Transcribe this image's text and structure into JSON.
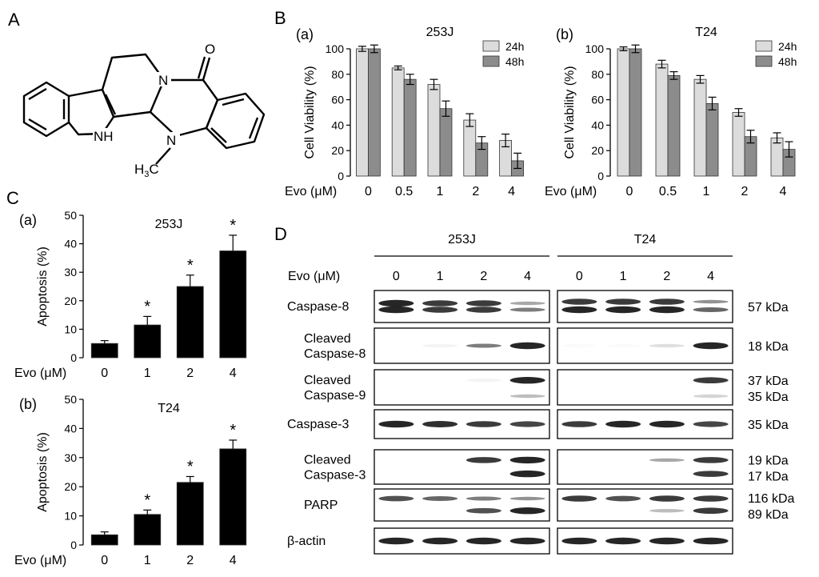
{
  "panel_letters": {
    "a": "A",
    "b": "B",
    "c": "C",
    "d": "D"
  },
  "structure": {
    "carbonyl_label": "O",
    "n_ring_label": "N",
    "nh_label": "NH",
    "n_methyl_label": "N",
    "methyl_label_h": "H",
    "methyl_label_sub": "3",
    "methyl_label_c": "C"
  },
  "colors": {
    "bar_24h": "#dcdcdc",
    "bar_48h": "#8c8c8c",
    "bar_apoptosis": "#000000",
    "blot_bg": "#ffffff",
    "band": "#1a1a1a"
  },
  "chart_data": [
    {
      "panel": "B(a)",
      "type": "bar",
      "sublabel": "(a)",
      "title": "253J",
      "ylabel": "Cell Viability (%)",
      "xlabel": "Evo (μM)",
      "categories": [
        "0",
        "0.5",
        "1",
        "2",
        "4"
      ],
      "ylim": [
        0,
        100
      ],
      "yticks": [
        0,
        20,
        40,
        60,
        80,
        100
      ],
      "series": [
        {
          "name": "24h",
          "values": [
            100,
            85,
            72,
            44,
            28
          ],
          "errors": [
            2,
            1.5,
            4,
            5,
            5
          ]
        },
        {
          "name": "48h",
          "values": [
            100,
            76,
            53,
            26,
            12
          ],
          "errors": [
            3,
            4,
            6,
            5,
            6
          ]
        }
      ],
      "legend": "top-right"
    },
    {
      "panel": "B(b)",
      "type": "bar",
      "sublabel": "(b)",
      "title": "T24",
      "ylabel": "Cell Viability (%)",
      "xlabel": "Evo (μM)",
      "categories": [
        "0",
        "0.5",
        "1",
        "2",
        "4"
      ],
      "ylim": [
        0,
        100
      ],
      "yticks": [
        0,
        20,
        40,
        60,
        80,
        100
      ],
      "series": [
        {
          "name": "24h",
          "values": [
            100,
            88,
            76,
            50,
            30
          ],
          "errors": [
            1.5,
            3,
            3,
            3,
            4
          ]
        },
        {
          "name": "48h",
          "values": [
            100,
            79,
            57,
            31,
            21
          ],
          "errors": [
            3,
            3,
            5,
            5,
            6
          ]
        }
      ],
      "legend": "top-right"
    },
    {
      "panel": "C(a)",
      "type": "bar",
      "sublabel": "(a)",
      "title": "253J",
      "ylabel": "Apoptosis (%)",
      "xlabel": "Evo (μM)",
      "categories": [
        "0",
        "1",
        "2",
        "4"
      ],
      "ylim": [
        0,
        50
      ],
      "yticks": [
        0,
        10,
        20,
        30,
        40,
        50
      ],
      "series": [
        {
          "values": [
            5,
            11.5,
            25,
            37.5
          ],
          "errors": [
            1,
            3,
            4,
            5.5
          ]
        }
      ],
      "significance": [
        "",
        "*",
        "*",
        "*"
      ]
    },
    {
      "panel": "C(b)",
      "type": "bar",
      "sublabel": "(b)",
      "title": "T24",
      "ylabel": "Apoptosis (%)",
      "xlabel": "Evo (μM)",
      "categories": [
        "0",
        "1",
        "2",
        "4"
      ],
      "ylim": [
        0,
        50
      ],
      "yticks": [
        0,
        10,
        20,
        30,
        40,
        50
      ],
      "series": [
        {
          "values": [
            3.5,
            10.5,
            21.5,
            33
          ],
          "errors": [
            1,
            1.5,
            2,
            3
          ]
        }
      ],
      "significance": [
        "",
        "*",
        "*",
        "*"
      ]
    }
  ],
  "western_blot": {
    "cell_lines": [
      "253J",
      "T24"
    ],
    "dose_label": "Evo (μM)",
    "doses": [
      "0",
      "1",
      "2",
      "4"
    ],
    "rows": [
      {
        "label_lines": [
          "Caspase-8"
        ],
        "kda": [
          "57 kDa"
        ],
        "bands": [
          [
            {
              "y": 0.4,
              "i": [
                1,
                0.9,
                0.9,
                0.4
              ]
            },
            {
              "y": 0.6,
              "i": [
                1,
                0.9,
                0.9,
                0.6
              ]
            }
          ],
          [
            {
              "y": 0.35,
              "i": [
                0.9,
                0.9,
                0.9,
                0.5
              ]
            },
            {
              "y": 0.6,
              "i": [
                1,
                1,
                1,
                0.7
              ]
            }
          ]
        ]
      },
      {
        "label_lines": [
          "Cleaved",
          "Caspase-8"
        ],
        "kda": [
          "18 kDa"
        ],
        "bands": [
          [
            {
              "y": 0.5,
              "i": [
                0,
                0.05,
                0.6,
                1
              ]
            }
          ],
          [
            {
              "y": 0.5,
              "i": [
                0.02,
                0.02,
                0.15,
                1
              ]
            }
          ]
        ]
      },
      {
        "label_lines": [
          "Cleaved",
          "Caspase-9"
        ],
        "kda": [
          "37 kDa",
          "35 kDa"
        ],
        "bands": [
          [
            {
              "y": 0.3,
              "i": [
                0,
                0,
                0.05,
                1
              ]
            },
            {
              "y": 0.75,
              "i": [
                0,
                0,
                0,
                0.3
              ]
            }
          ],
          [
            {
              "y": 0.3,
              "i": [
                0,
                0,
                0,
                0.9
              ]
            },
            {
              "y": 0.75,
              "i": [
                0,
                0,
                0,
                0.2
              ]
            }
          ]
        ]
      },
      {
        "label_lines": [
          "Caspase-3"
        ],
        "kda": [
          "35 kDa"
        ],
        "bands": [
          [
            {
              "y": 0.5,
              "i": [
                1,
                0.95,
                0.9,
                0.85
              ]
            }
          ],
          [
            {
              "y": 0.5,
              "i": [
                0.9,
                1,
                1,
                0.85
              ]
            }
          ]
        ]
      },
      {
        "label_lines": [
          "Cleaved",
          "Caspase-3"
        ],
        "kda": [
          "19 kDa",
          "17 kDa"
        ],
        "bands": [
          [
            {
              "y": 0.3,
              "i": [
                0,
                0,
                0.9,
                1
              ]
            },
            {
              "y": 0.7,
              "i": [
                0,
                0,
                0,
                1
              ]
            }
          ],
          [
            {
              "y": 0.3,
              "i": [
                0,
                0,
                0.4,
                0.9
              ]
            },
            {
              "y": 0.7,
              "i": [
                0,
                0,
                0,
                0.9
              ]
            }
          ]
        ]
      },
      {
        "label_lines": [
          "PARP"
        ],
        "kda": [
          "116 kDa",
          "89 kDa"
        ],
        "bands": [
          [
            {
              "y": 0.3,
              "i": [
                0.8,
                0.7,
                0.6,
                0.5
              ]
            },
            {
              "y": 0.68,
              "i": [
                0,
                0,
                0.8,
                1
              ]
            }
          ],
          [
            {
              "y": 0.3,
              "i": [
                0.9,
                0.8,
                0.9,
                0.9
              ]
            },
            {
              "y": 0.68,
              "i": [
                0,
                0,
                0.3,
                0.9
              ]
            }
          ]
        ]
      },
      {
        "label_lines": [
          "β-actin"
        ],
        "kda": [],
        "bands": [
          [
            {
              "y": 0.5,
              "i": [
                1,
                1,
                1,
                1
              ]
            }
          ],
          [
            {
              "y": 0.5,
              "i": [
                1,
                1,
                1,
                1
              ]
            }
          ]
        ]
      }
    ]
  }
}
